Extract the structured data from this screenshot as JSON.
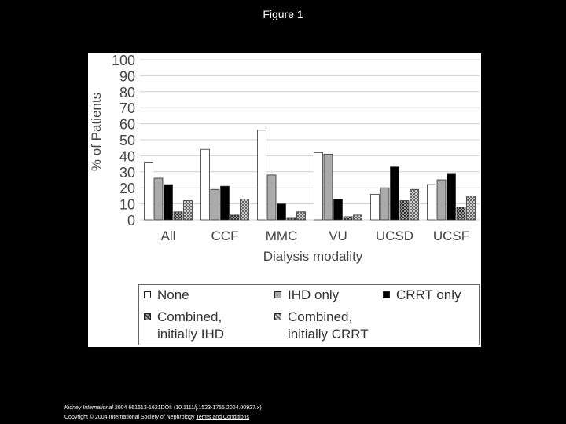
{
  "page": {
    "title": "Figure 1"
  },
  "chart_data": {
    "type": "bar",
    "categories": [
      "All",
      "CCF",
      "MMC",
      "VU",
      "UCSD",
      "UCSF"
    ],
    "series": [
      {
        "name": "None",
        "values": [
          36,
          44,
          56,
          42,
          16,
          22
        ],
        "fill": "#ffffff"
      },
      {
        "name": "IHD only",
        "values": [
          26,
          19,
          28,
          41,
          20,
          25
        ],
        "fill": "#aaaaaa"
      },
      {
        "name": "CRRT only",
        "values": [
          22,
          21,
          10,
          13,
          33,
          29
        ],
        "fill": "#000000"
      },
      {
        "name": "Combined, initially IHD",
        "values": [
          5,
          3,
          1,
          2,
          12,
          8
        ],
        "fill": "pat-dark"
      },
      {
        "name": "Combined, initially CRRT",
        "values": [
          12,
          13,
          5,
          3,
          19,
          15
        ],
        "fill": "pat-light"
      }
    ],
    "legend_lines": [
      [
        "None"
      ],
      [
        "IHD only"
      ],
      [
        "CRRT only"
      ],
      [
        "Combined,",
        "initially IHD"
      ],
      [
        "Combined,",
        "initially CRRT"
      ]
    ],
    "title": "",
    "xlabel": "Dialysis modality",
    "ylabel": "% of Patients",
    "ylim": [
      0,
      100
    ],
    "yticks": [
      0,
      10,
      20,
      30,
      40,
      50,
      60,
      70,
      80,
      90,
      100
    ],
    "grid": true,
    "legend_position": "bottom"
  },
  "footer": {
    "journal": "Kidney International",
    "citation": " 2004 661613-1621DOI: (10.1111/j.1523-1755.2004.00927.x)",
    "copyright": "Copyright © 2004 International Society of Nephrology",
    "link": "Terms and Conditions"
  }
}
